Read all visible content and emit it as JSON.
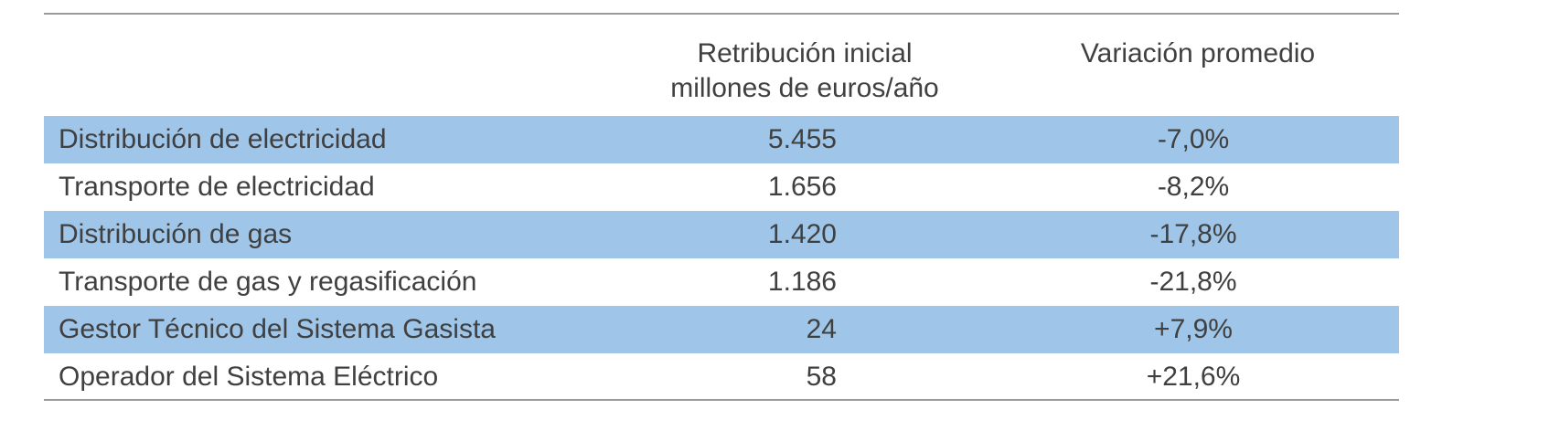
{
  "table": {
    "header": [
      "",
      "Retribución inicial\nmillones de euros/año",
      "Variación promedio"
    ],
    "rows": [
      [
        "Distribución de electricidad",
        "5.455",
        "-7,0%"
      ],
      [
        "Transporte de electricidad",
        "1.656",
        "-8,2%"
      ],
      [
        "Distribución de gas",
        "1.420",
        "-17,8%"
      ],
      [
        "Transporte de gas y regasificación",
        "1.186",
        "-21,8%"
      ],
      [
        "Gestor Técnico del Sistema Gasista",
        "24",
        "+7,9%"
      ],
      [
        "Operador del Sistema Eléctrico",
        "58",
        "+21,6%"
      ]
    ]
  }
}
